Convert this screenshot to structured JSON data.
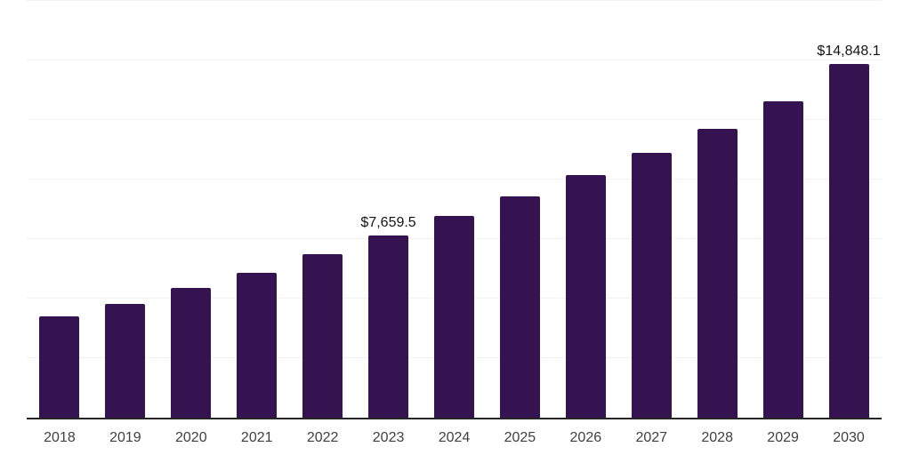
{
  "chart_data": {
    "type": "bar",
    "title": "",
    "xlabel": "",
    "ylabel": "",
    "categories": [
      "2018",
      "2019",
      "2020",
      "2021",
      "2022",
      "2023",
      "2024",
      "2025",
      "2026",
      "2027",
      "2028",
      "2029",
      "2030"
    ],
    "values": [
      4260,
      4790,
      5430,
      6100,
      6850,
      7659.5,
      8470,
      9300,
      10190,
      11120,
      12120,
      13290,
      14848.1
    ],
    "data_labels": [
      {
        "category": "2023",
        "text": "$7,659.5"
      },
      {
        "category": "2030",
        "text": "$14,848.1"
      }
    ],
    "ylim": [
      0,
      17500
    ],
    "gridline_interval": 2500,
    "grid": true,
    "legend_position": "none",
    "bar_color": "#351250",
    "axis_line_color": "#262626",
    "gridline_color": "#f2f2f2",
    "tick_label_color": "#404040",
    "data_label_color": "#141414",
    "background_color": "#ffffff"
  }
}
